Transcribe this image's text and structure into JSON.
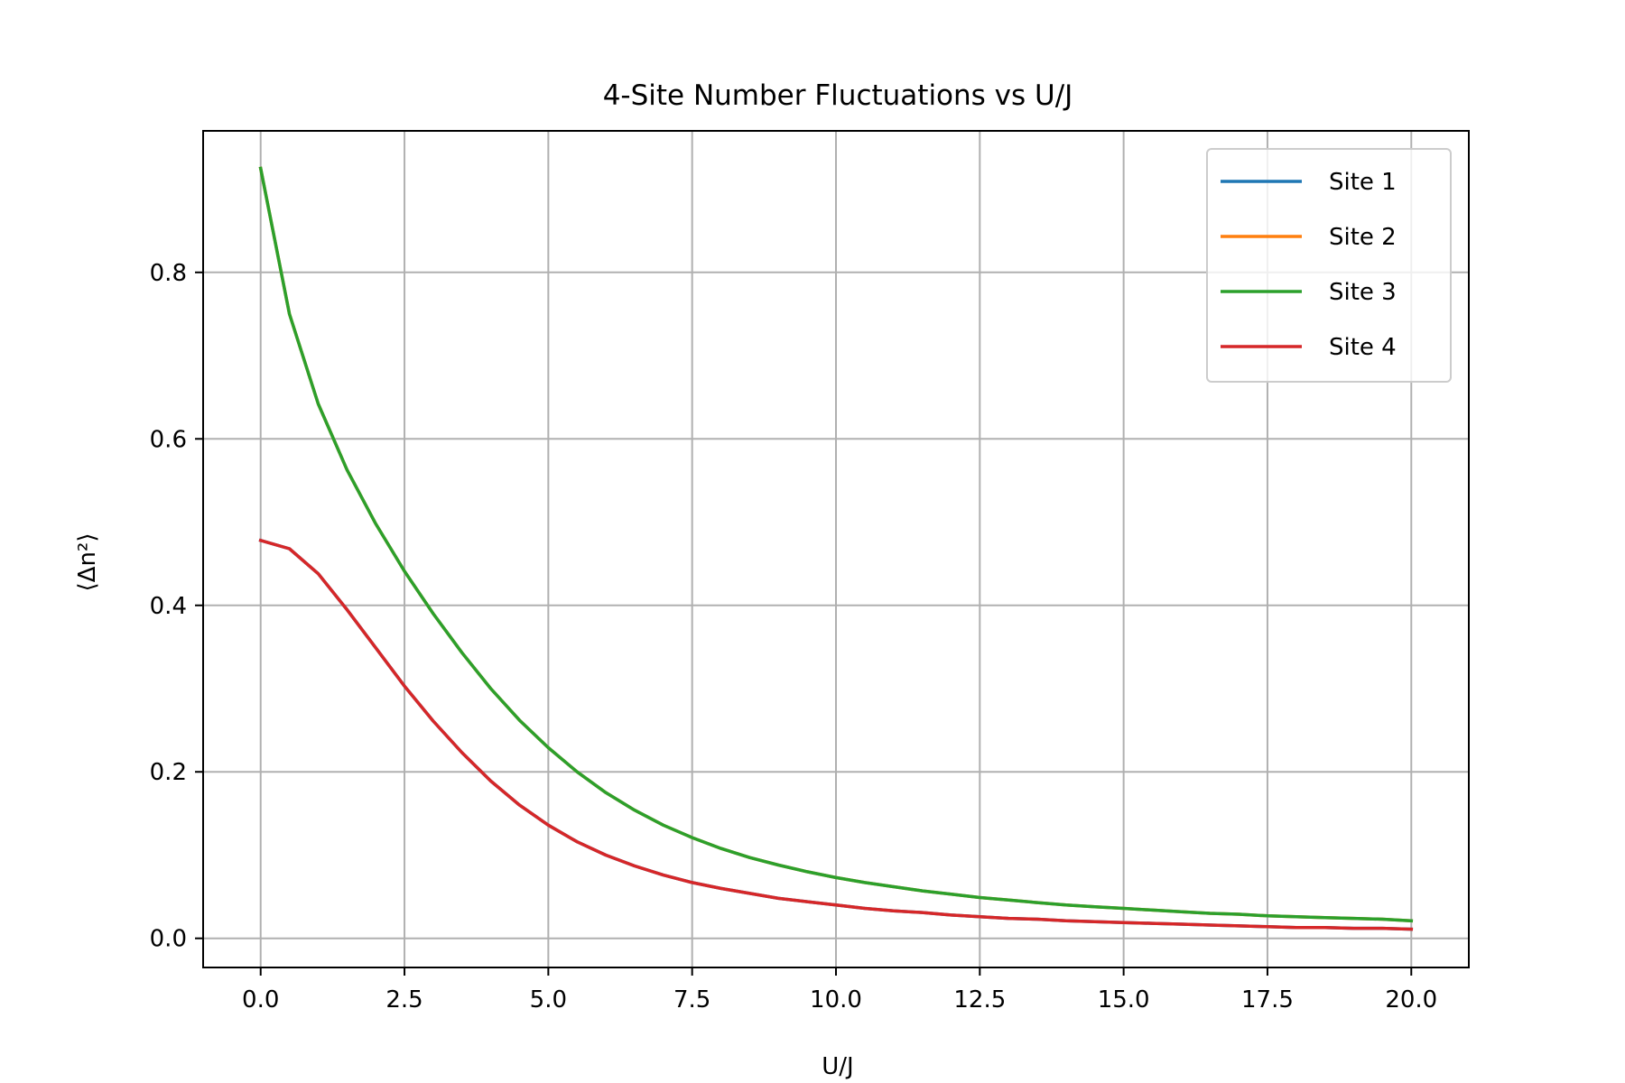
{
  "chart_data": {
    "type": "line",
    "title": "4-Site Number Fluctuations vs U/J",
    "xlabel": "U/J",
    "ylabel": "⟨Δn²⟩",
    "xlim": [
      -1.0,
      21.0
    ],
    "ylim": [
      -0.035,
      0.97
    ],
    "xticks": [
      0.0,
      2.5,
      5.0,
      7.5,
      10.0,
      12.5,
      15.0,
      17.5,
      20.0
    ],
    "xtick_labels": [
      "0.0",
      "2.5",
      "5.0",
      "7.5",
      "10.0",
      "12.5",
      "15.0",
      "17.5",
      "20.0"
    ],
    "yticks": [
      0.0,
      0.2,
      0.4,
      0.6,
      0.8
    ],
    "ytick_labels": [
      "0.0",
      "0.2",
      "0.4",
      "0.6",
      "0.8"
    ],
    "grid": true,
    "legend_position": "top-right",
    "x": [
      0.0,
      0.5,
      1.0,
      1.5,
      2.0,
      2.5,
      3.0,
      3.5,
      4.0,
      4.5,
      5.0,
      5.5,
      6.0,
      6.5,
      7.0,
      7.5,
      8.0,
      8.5,
      9.0,
      9.5,
      10.0,
      10.5,
      11.0,
      11.5,
      12.0,
      12.5,
      13.0,
      13.5,
      14.0,
      14.5,
      15.0,
      15.5,
      16.0,
      16.5,
      17.0,
      17.5,
      18.0,
      18.5,
      19.0,
      19.5,
      20.0
    ],
    "series": [
      {
        "name": "Site 1",
        "color": "#1f77b4",
        "values": [
          0.478,
          0.468,
          0.438,
          0.395,
          0.349,
          0.303,
          0.261,
          0.223,
          0.189,
          0.16,
          0.136,
          0.116,
          0.1,
          0.087,
          0.076,
          0.067,
          0.06,
          0.054,
          0.048,
          0.044,
          0.04,
          0.036,
          0.033,
          0.031,
          0.028,
          0.026,
          0.024,
          0.023,
          0.021,
          0.02,
          0.019,
          0.018,
          0.017,
          0.016,
          0.015,
          0.014,
          0.013,
          0.013,
          0.012,
          0.012,
          0.011
        ]
      },
      {
        "name": "Site 2",
        "color": "#ff7f0e",
        "values": [
          0.925,
          0.75,
          0.642,
          0.563,
          0.498,
          0.441,
          0.39,
          0.343,
          0.3,
          0.262,
          0.229,
          0.2,
          0.175,
          0.154,
          0.136,
          0.121,
          0.108,
          0.097,
          0.088,
          0.08,
          0.073,
          0.067,
          0.062,
          0.057,
          0.053,
          0.049,
          0.046,
          0.043,
          0.04,
          0.038,
          0.036,
          0.034,
          0.032,
          0.03,
          0.029,
          0.027,
          0.026,
          0.025,
          0.024,
          0.023,
          0.021
        ]
      },
      {
        "name": "Site 3",
        "color": "#2ca02c",
        "values": [
          0.925,
          0.75,
          0.642,
          0.563,
          0.498,
          0.441,
          0.39,
          0.343,
          0.3,
          0.262,
          0.229,
          0.2,
          0.175,
          0.154,
          0.136,
          0.121,
          0.108,
          0.097,
          0.088,
          0.08,
          0.073,
          0.067,
          0.062,
          0.057,
          0.053,
          0.049,
          0.046,
          0.043,
          0.04,
          0.038,
          0.036,
          0.034,
          0.032,
          0.03,
          0.029,
          0.027,
          0.026,
          0.025,
          0.024,
          0.023,
          0.021
        ]
      },
      {
        "name": "Site 4",
        "color": "#d62728",
        "values": [
          0.478,
          0.468,
          0.438,
          0.395,
          0.349,
          0.303,
          0.261,
          0.223,
          0.189,
          0.16,
          0.136,
          0.116,
          0.1,
          0.087,
          0.076,
          0.067,
          0.06,
          0.054,
          0.048,
          0.044,
          0.04,
          0.036,
          0.033,
          0.031,
          0.028,
          0.026,
          0.024,
          0.023,
          0.021,
          0.02,
          0.019,
          0.018,
          0.017,
          0.016,
          0.015,
          0.014,
          0.013,
          0.013,
          0.012,
          0.012,
          0.011
        ]
      }
    ]
  }
}
